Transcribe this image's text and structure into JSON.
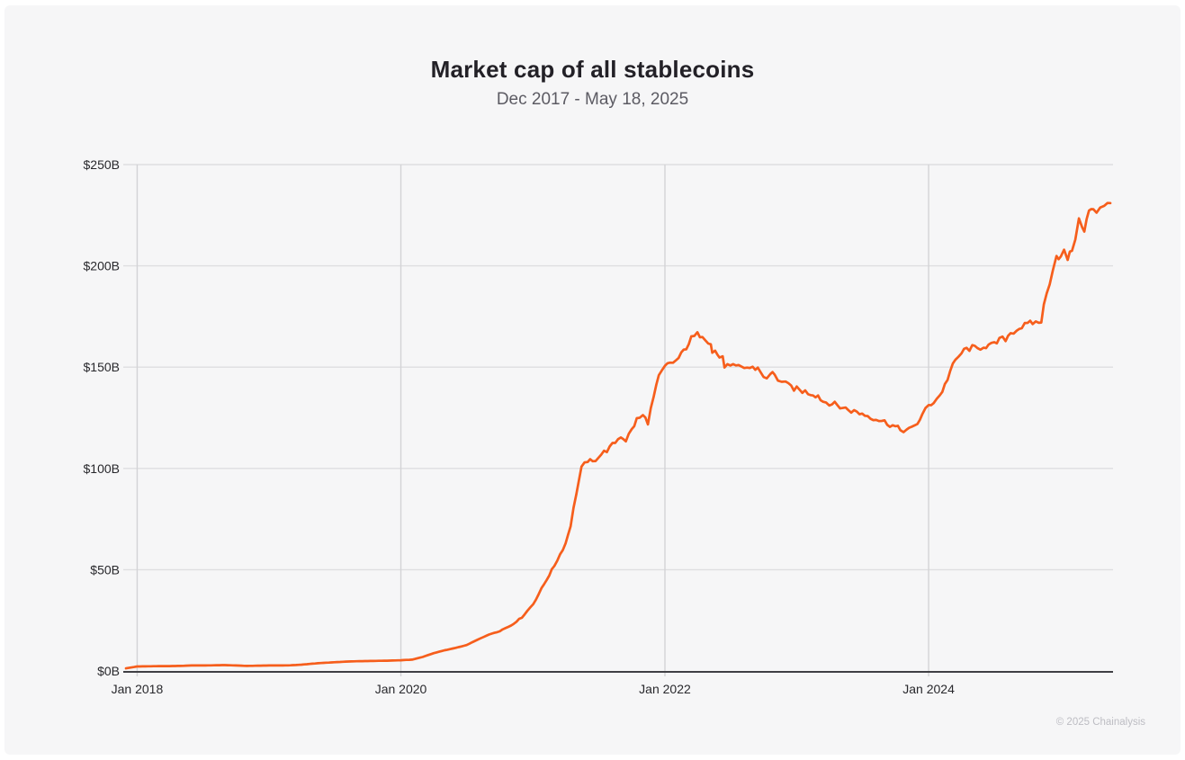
{
  "header": {
    "title": "Market cap of all stablecoins",
    "subtitle": "Dec 2017 - May 18, 2025"
  },
  "footer": {
    "attribution": "© 2025 Chainalysis"
  },
  "colors": {
    "page_background": "#ffffff",
    "card_background": "#f6f6f7",
    "line": "#f65e1c",
    "grid_horizontal": "#dedee0",
    "grid_vertical": "#d3d3d6",
    "axis": "#3f3f44",
    "tick_text": "#28282c",
    "title_text": "#232127",
    "subtitle_text": "#5c5b63",
    "attribution_text": "#bdbdc3"
  },
  "chart_data": {
    "type": "line",
    "title": "Market cap of all stablecoins",
    "subtitle": "Dec 2017 - May 18, 2025",
    "unit": "$B",
    "grid": true,
    "legend_position": "none",
    "ylim": [
      0,
      250
    ],
    "x_domain": [
      "2017-12-01",
      "2025-05-18"
    ],
    "y_ticks": [
      {
        "label": "$0B",
        "value": 0
      },
      {
        "label": "$50B",
        "value": 50
      },
      {
        "label": "$100B",
        "value": 100
      },
      {
        "label": "$150B",
        "value": 150
      },
      {
        "label": "$200B",
        "value": 200
      },
      {
        "label": "$250B",
        "value": 250
      }
    ],
    "x_ticks": [
      {
        "label": "Jan 2018",
        "date": "2018-01-01"
      },
      {
        "label": "Jan 2020",
        "date": "2020-01-01"
      },
      {
        "label": "Jan 2022",
        "date": "2022-01-01"
      },
      {
        "label": "Jan 2024",
        "date": "2024-01-01"
      }
    ],
    "series": [
      {
        "name": "Total stablecoin market cap ($B)",
        "color": "#f65e1c",
        "points": [
          [
            "2017-12-01",
            1.3
          ],
          [
            "2018-01-01",
            2.2
          ],
          [
            "2018-02-01",
            2.3
          ],
          [
            "2018-03-01",
            2.4
          ],
          [
            "2018-04-01",
            2.4
          ],
          [
            "2018-05-01",
            2.5
          ],
          [
            "2018-06-01",
            2.7
          ],
          [
            "2018-07-01",
            2.7
          ],
          [
            "2018-08-01",
            2.8
          ],
          [
            "2018-09-01",
            2.9
          ],
          [
            "2018-10-01",
            2.7
          ],
          [
            "2018-11-01",
            2.5
          ],
          [
            "2018-12-01",
            2.6
          ],
          [
            "2019-01-01",
            2.7
          ],
          [
            "2019-02-01",
            2.7
          ],
          [
            "2019-03-01",
            2.8
          ],
          [
            "2019-04-01",
            3.1
          ],
          [
            "2019-05-01",
            3.6
          ],
          [
            "2019-06-01",
            4.0
          ],
          [
            "2019-07-01",
            4.3
          ],
          [
            "2019-08-01",
            4.6
          ],
          [
            "2019-09-01",
            4.8
          ],
          [
            "2019-10-01",
            4.9
          ],
          [
            "2019-11-01",
            5.0
          ],
          [
            "2019-12-01",
            5.1
          ],
          [
            "2020-01-01",
            5.3
          ],
          [
            "2020-02-01",
            5.6
          ],
          [
            "2020-03-01",
            6.9
          ],
          [
            "2020-04-01",
            8.8
          ],
          [
            "2020-05-01",
            10.2
          ],
          [
            "2020-06-01",
            11.4
          ],
          [
            "2020-07-01",
            12.8
          ],
          [
            "2020-08-01",
            15.5
          ],
          [
            "2020-09-01",
            18.0
          ],
          [
            "2020-10-01",
            19.8
          ],
          [
            "2020-11-01",
            22.5
          ],
          [
            "2020-12-01",
            26.5
          ],
          [
            "2021-01-01",
            33
          ],
          [
            "2021-02-01",
            43
          ],
          [
            "2021-03-01",
            52
          ],
          [
            "2021-04-01",
            63
          ],
          [
            "2021-04-15",
            72
          ],
          [
            "2021-05-01",
            88
          ],
          [
            "2021-05-15",
            100
          ],
          [
            "2021-06-01",
            104
          ],
          [
            "2021-06-15",
            103
          ],
          [
            "2021-07-01",
            106
          ],
          [
            "2021-08-01",
            110
          ],
          [
            "2021-09-01",
            116
          ],
          [
            "2021-09-15",
            114
          ],
          [
            "2021-10-01",
            119
          ],
          [
            "2021-10-15",
            124
          ],
          [
            "2021-11-01",
            126
          ],
          [
            "2021-11-15",
            123
          ],
          [
            "2021-12-01",
            135
          ],
          [
            "2021-12-15",
            145
          ],
          [
            "2022-01-01",
            150
          ],
          [
            "2022-01-15",
            152
          ],
          [
            "2022-02-01",
            153
          ],
          [
            "2022-02-15",
            156
          ],
          [
            "2022-03-01",
            160
          ],
          [
            "2022-03-15",
            164
          ],
          [
            "2022-04-01",
            166
          ],
          [
            "2022-04-15",
            166
          ],
          [
            "2022-05-01",
            163
          ],
          [
            "2022-05-08",
            162
          ],
          [
            "2022-05-12",
            157
          ],
          [
            "2022-05-20",
            158
          ],
          [
            "2022-06-01",
            155
          ],
          [
            "2022-06-10",
            154
          ],
          [
            "2022-06-15",
            151
          ],
          [
            "2022-07-01",
            150
          ],
          [
            "2022-08-01",
            150
          ],
          [
            "2022-09-01",
            149.5
          ],
          [
            "2022-09-15",
            149.5
          ],
          [
            "2022-10-01",
            146
          ],
          [
            "2022-10-10",
            143.5
          ],
          [
            "2022-10-20",
            146.5
          ],
          [
            "2022-11-01",
            147
          ],
          [
            "2022-11-10",
            144
          ],
          [
            "2022-11-20",
            142.5
          ],
          [
            "2022-12-01",
            141.5
          ],
          [
            "2023-01-01",
            139
          ],
          [
            "2023-02-01",
            137.5
          ],
          [
            "2023-03-01",
            136
          ],
          [
            "2023-03-15",
            133
          ],
          [
            "2023-04-01",
            132.5
          ],
          [
            "2023-05-01",
            130.5
          ],
          [
            "2023-06-01",
            128.5
          ],
          [
            "2023-07-01",
            127
          ],
          [
            "2023-08-01",
            125
          ],
          [
            "2023-09-01",
            123
          ],
          [
            "2023-10-01",
            120.5
          ],
          [
            "2023-10-15",
            119
          ],
          [
            "2023-11-01",
            119
          ],
          [
            "2023-11-15",
            119.5
          ],
          [
            "2023-12-01",
            122.5
          ],
          [
            "2023-12-15",
            126.5
          ],
          [
            "2024-01-01",
            131
          ],
          [
            "2024-01-15",
            133
          ],
          [
            "2024-02-01",
            136
          ],
          [
            "2024-02-15",
            141
          ],
          [
            "2024-03-01",
            148
          ],
          [
            "2024-03-15",
            153
          ],
          [
            "2024-04-01",
            157
          ],
          [
            "2024-04-15",
            159
          ],
          [
            "2024-05-01",
            159.5
          ],
          [
            "2024-05-15",
            159
          ],
          [
            "2024-06-01",
            160.5
          ],
          [
            "2024-06-15",
            160.5
          ],
          [
            "2024-07-01",
            161
          ],
          [
            "2024-07-15",
            163.5
          ],
          [
            "2024-08-01",
            164
          ],
          [
            "2024-08-15",
            167
          ],
          [
            "2024-09-01",
            168.5
          ],
          [
            "2024-09-15",
            170
          ],
          [
            "2024-10-01",
            171
          ],
          [
            "2024-10-15",
            172
          ],
          [
            "2024-11-01",
            172
          ],
          [
            "2024-11-08",
            173
          ],
          [
            "2024-11-15",
            180
          ],
          [
            "2024-12-01",
            192
          ],
          [
            "2024-12-10",
            199
          ],
          [
            "2024-12-20",
            205
          ],
          [
            "2025-01-01",
            204
          ],
          [
            "2025-01-10",
            207
          ],
          [
            "2025-01-20",
            203.5
          ],
          [
            "2025-02-01",
            208
          ],
          [
            "2025-02-10",
            214
          ],
          [
            "2025-02-20",
            222
          ],
          [
            "2025-03-01",
            220
          ],
          [
            "2025-03-07",
            218
          ],
          [
            "2025-03-20",
            227
          ],
          [
            "2025-04-01",
            228
          ],
          [
            "2025-04-10",
            225.5
          ],
          [
            "2025-04-20",
            228
          ],
          [
            "2025-05-01",
            230
          ],
          [
            "2025-05-10",
            231.5
          ],
          [
            "2025-05-18",
            231
          ]
        ]
      }
    ]
  }
}
